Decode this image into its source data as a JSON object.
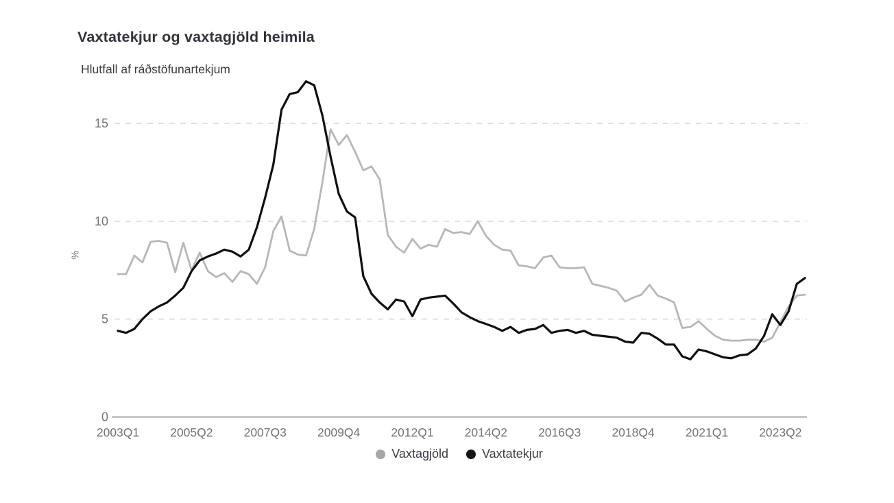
{
  "chart": {
    "title": "Vaxtatekjur og vaxtagjöld heimila",
    "subtitle": "Hlutfall af ráðstöfunartekjum",
    "y_axis_label": "%",
    "colors": {
      "background": "#ffffff",
      "title_text": "#32333c",
      "tick_text": "#71747d",
      "gridline": "#dadadb",
      "axis_line": "#96969c",
      "series_vaxtagjold": "#b7b7b7",
      "series_vaxtatekjur": "#101014",
      "legend_dot_gray": "#a6a6a6",
      "legend_dot_black": "#15151a"
    }
  },
  "chart_data": {
    "type": "line",
    "title": "Vaxtatekjur og vaxtagjöld heimila",
    "subtitle": "Hlutfall af ráðstöfunartekjum",
    "ylabel": "%",
    "x_start_period": "2003Q1",
    "x_frequency": "quarterly",
    "x_tick_labels": [
      "2003Q1",
      "2005Q2",
      "2007Q3",
      "2009Q4",
      "2012Q1",
      "2014Q2",
      "2016Q3",
      "2018Q4",
      "2021Q1",
      "2023Q2"
    ],
    "x_tick_indices": [
      0,
      9,
      18,
      27,
      36,
      45,
      54,
      63,
      72,
      81
    ],
    "y_ticks": [
      0,
      5,
      10,
      15
    ],
    "ylim": [
      0,
      17.6
    ],
    "grid": "horizontal-dashed",
    "legend_position": "bottom-center",
    "series": [
      {
        "name": "Vaxtagjöld",
        "color": "#b7b7b7",
        "values": [
          7.3,
          7.3,
          8.25,
          7.9,
          8.95,
          9.0,
          8.9,
          7.4,
          8.9,
          7.5,
          8.4,
          7.45,
          7.15,
          7.35,
          6.9,
          7.45,
          7.3,
          6.8,
          7.65,
          9.5,
          10.25,
          8.5,
          8.3,
          8.25,
          9.6,
          12.0,
          14.7,
          13.9,
          14.4,
          13.55,
          12.6,
          12.8,
          12.15,
          9.3,
          8.7,
          8.4,
          9.1,
          8.6,
          8.8,
          8.7,
          9.6,
          9.4,
          9.45,
          9.35,
          10.0,
          9.25,
          8.8,
          8.55,
          8.5,
          7.75,
          7.7,
          7.6,
          8.15,
          8.25,
          7.65,
          7.6,
          7.6,
          7.65,
          6.8,
          6.7,
          6.6,
          6.45,
          5.9,
          6.1,
          6.25,
          6.75,
          6.2,
          6.05,
          5.85,
          4.55,
          4.6,
          4.9,
          4.5,
          4.15,
          3.95,
          3.9,
          3.9,
          3.95,
          3.95,
          3.85,
          4.05,
          4.85,
          5.65,
          6.2,
          6.25
        ]
      },
      {
        "name": "Vaxtatekjur",
        "color": "#101014",
        "values": [
          4.4,
          4.3,
          4.5,
          5.0,
          5.4,
          5.65,
          5.85,
          6.2,
          6.6,
          7.45,
          8.0,
          8.2,
          8.35,
          8.55,
          8.45,
          8.2,
          8.55,
          9.7,
          11.2,
          12.9,
          15.7,
          16.5,
          16.6,
          17.15,
          16.95,
          15.4,
          13.3,
          11.4,
          10.5,
          10.2,
          7.2,
          6.3,
          5.85,
          5.5,
          6.0,
          5.9,
          5.15,
          6.0,
          6.1,
          6.15,
          6.2,
          5.8,
          5.35,
          5.1,
          4.9,
          4.75,
          4.6,
          4.4,
          4.6,
          4.3,
          4.45,
          4.5,
          4.7,
          4.3,
          4.4,
          4.45,
          4.3,
          4.4,
          4.2,
          4.15,
          4.1,
          4.05,
          3.85,
          3.8,
          4.3,
          4.25,
          4.0,
          3.7,
          3.7,
          3.1,
          2.95,
          3.45,
          3.35,
          3.2,
          3.05,
          3.0,
          3.15,
          3.2,
          3.5,
          4.15,
          5.25,
          4.7,
          5.4,
          6.8,
          7.1
        ]
      }
    ]
  }
}
